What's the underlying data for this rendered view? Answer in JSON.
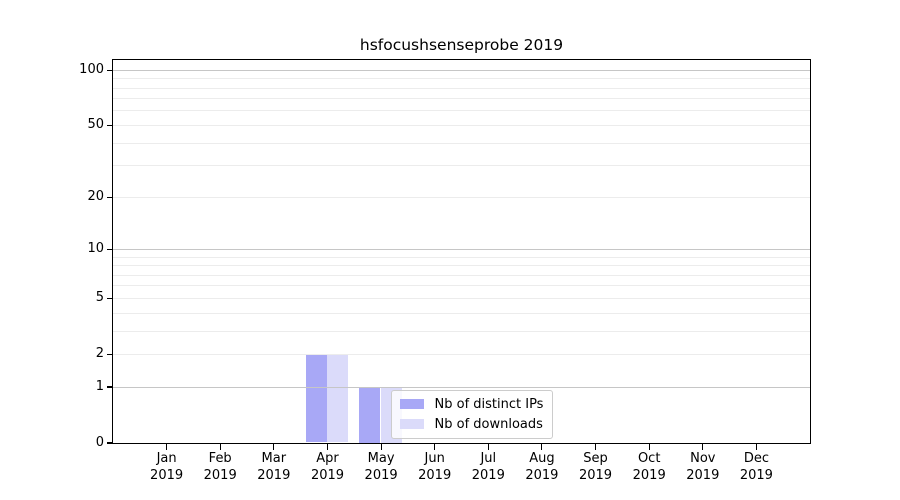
{
  "title": "hsfocushsenseprobe 2019",
  "colors": {
    "bar_distinct_ips": "#a8a8f6",
    "bar_downloads": "#dbdbfa",
    "grid_major": "#c6c6c6",
    "grid_minor": "#ececec",
    "axis": "#000000",
    "legend_border": "#cccccc",
    "legend_bg": "rgba(255,255,255,0.8)",
    "text": "#000000"
  },
  "legend": {
    "items": [
      {
        "label": "Nb of distinct IPs",
        "color_key": "bar_distinct_ips"
      },
      {
        "label": "Nb of downloads",
        "color_key": "bar_downloads"
      }
    ]
  },
  "chart_data": {
    "type": "bar",
    "title": "hsfocushsenseprobe 2019",
    "categories": [
      "Jan",
      "Feb",
      "Mar",
      "Apr",
      "May",
      "Jun",
      "Jul",
      "Aug",
      "Sep",
      "Oct",
      "Nov",
      "Dec"
    ],
    "category_year": "2019",
    "series": [
      {
        "name": "Nb of distinct IPs",
        "color_key": "bar_distinct_ips",
        "values": [
          0,
          0,
          0,
          2,
          1,
          0,
          0,
          0,
          0,
          0,
          0,
          0
        ]
      },
      {
        "name": "Nb of downloads",
        "color_key": "bar_downloads",
        "values": [
          0,
          0,
          0,
          2,
          1,
          0,
          0,
          0,
          0,
          0,
          0,
          0
        ]
      }
    ],
    "yscale": "log1p",
    "ylim": [
      0,
      113
    ],
    "yticks": [
      0,
      1,
      2,
      5,
      10,
      20,
      50,
      100
    ],
    "yticks_minor": [
      2,
      3,
      4,
      5,
      6,
      7,
      8,
      9,
      20,
      30,
      40,
      50,
      60,
      70,
      80,
      90
    ],
    "yticks_major_grid": [
      1,
      10,
      100
    ],
    "xlabel": "",
    "ylabel": "",
    "grid": "horizontal",
    "legend_position": "inside-lower-center"
  }
}
